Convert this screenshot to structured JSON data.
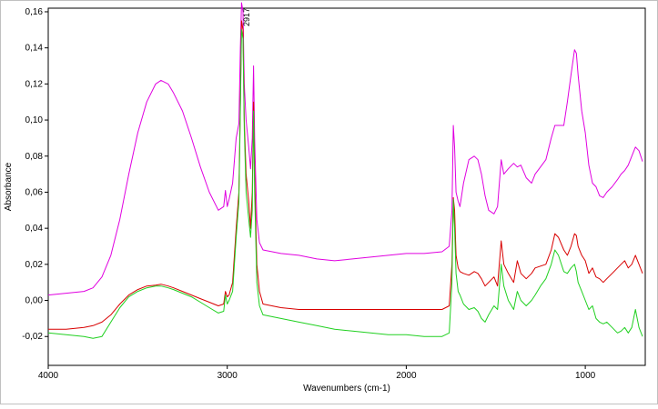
{
  "chart_data": {
    "type": "line",
    "xlabel": "Wavenumbers (cm-1)",
    "ylabel": "Absorbance",
    "xlim": [
      4000,
      665
    ],
    "ylim": [
      -0.036,
      0.162
    ],
    "x_reversed": true,
    "grid": false,
    "legend": "none",
    "xticks": [
      4000,
      3000,
      2000,
      1000
    ],
    "xtick_labels": [
      "4000",
      "3000",
      "2000",
      "1000"
    ],
    "yticks": [
      -0.02,
      0.0,
      0.02,
      0.04,
      0.06,
      0.08,
      0.1,
      0.12,
      0.14,
      0.16
    ],
    "ytick_labels": [
      "-0,02",
      "0,00",
      "0,02",
      "0,04",
      "0,06",
      "0,08",
      "0,10",
      "0,12",
      "0,14",
      "0,16"
    ],
    "annotations": [
      {
        "text": "2917",
        "x": 2917,
        "y": 0.158
      }
    ],
    "series": [
      {
        "color": "#e000e0",
        "points": [
          [
            4000,
            0.003
          ],
          [
            3900,
            0.004
          ],
          [
            3800,
            0.005
          ],
          [
            3750,
            0.007
          ],
          [
            3700,
            0.013
          ],
          [
            3650,
            0.025
          ],
          [
            3600,
            0.045
          ],
          [
            3550,
            0.07
          ],
          [
            3500,
            0.093
          ],
          [
            3450,
            0.11
          ],
          [
            3400,
            0.12
          ],
          [
            3370,
            0.122
          ],
          [
            3330,
            0.12
          ],
          [
            3300,
            0.115
          ],
          [
            3250,
            0.105
          ],
          [
            3200,
            0.09
          ],
          [
            3150,
            0.074
          ],
          [
            3100,
            0.06
          ],
          [
            3050,
            0.05
          ],
          [
            3020,
            0.052
          ],
          [
            3010,
            0.061
          ],
          [
            3000,
            0.052
          ],
          [
            2990,
            0.056
          ],
          [
            2970,
            0.065
          ],
          [
            2950,
            0.09
          ],
          [
            2935,
            0.098
          ],
          [
            2927,
            0.14
          ],
          [
            2920,
            0.165
          ],
          [
            2912,
            0.16
          ],
          [
            2905,
            0.12
          ],
          [
            2895,
            0.1
          ],
          [
            2880,
            0.085
          ],
          [
            2870,
            0.073
          ],
          [
            2860,
            0.09
          ],
          [
            2853,
            0.13
          ],
          [
            2847,
            0.09
          ],
          [
            2835,
            0.045
          ],
          [
            2820,
            0.032
          ],
          [
            2800,
            0.028
          ],
          [
            2700,
            0.026
          ],
          [
            2600,
            0.025
          ],
          [
            2500,
            0.023
          ],
          [
            2400,
            0.022
          ],
          [
            2300,
            0.023
          ],
          [
            2200,
            0.024
          ],
          [
            2100,
            0.025
          ],
          [
            2000,
            0.026
          ],
          [
            1900,
            0.026
          ],
          [
            1800,
            0.027
          ],
          [
            1760,
            0.03
          ],
          [
            1745,
            0.05
          ],
          [
            1737,
            0.097
          ],
          [
            1730,
            0.085
          ],
          [
            1722,
            0.06
          ],
          [
            1710,
            0.055
          ],
          [
            1700,
            0.052
          ],
          [
            1680,
            0.065
          ],
          [
            1650,
            0.078
          ],
          [
            1620,
            0.08
          ],
          [
            1600,
            0.078
          ],
          [
            1580,
            0.07
          ],
          [
            1560,
            0.058
          ],
          [
            1540,
            0.05
          ],
          [
            1510,
            0.048
          ],
          [
            1490,
            0.052
          ],
          [
            1470,
            0.078
          ],
          [
            1455,
            0.07
          ],
          [
            1430,
            0.073
          ],
          [
            1400,
            0.076
          ],
          [
            1380,
            0.074
          ],
          [
            1360,
            0.075
          ],
          [
            1330,
            0.068
          ],
          [
            1300,
            0.065
          ],
          [
            1280,
            0.07
          ],
          [
            1250,
            0.074
          ],
          [
            1220,
            0.078
          ],
          [
            1190,
            0.09
          ],
          [
            1170,
            0.097
          ],
          [
            1150,
            0.097
          ],
          [
            1120,
            0.097
          ],
          [
            1100,
            0.11
          ],
          [
            1080,
            0.125
          ],
          [
            1060,
            0.139
          ],
          [
            1050,
            0.137
          ],
          [
            1040,
            0.125
          ],
          [
            1020,
            0.105
          ],
          [
            1000,
            0.093
          ],
          [
            980,
            0.075
          ],
          [
            960,
            0.065
          ],
          [
            940,
            0.063
          ],
          [
            920,
            0.058
          ],
          [
            900,
            0.057
          ],
          [
            880,
            0.06
          ],
          [
            850,
            0.063
          ],
          [
            820,
            0.067
          ],
          [
            800,
            0.07
          ],
          [
            780,
            0.072
          ],
          [
            760,
            0.075
          ],
          [
            740,
            0.08
          ],
          [
            720,
            0.085
          ],
          [
            700,
            0.083
          ],
          [
            680,
            0.077
          ]
        ]
      },
      {
        "color": "#d80000",
        "points": [
          [
            4000,
            -0.016
          ],
          [
            3900,
            -0.016
          ],
          [
            3800,
            -0.015
          ],
          [
            3750,
            -0.014
          ],
          [
            3700,
            -0.012
          ],
          [
            3650,
            -0.008
          ],
          [
            3600,
            -0.002
          ],
          [
            3550,
            0.003
          ],
          [
            3500,
            0.006
          ],
          [
            3450,
            0.008
          ],
          [
            3400,
            0.0085
          ],
          [
            3370,
            0.009
          ],
          [
            3330,
            0.008
          ],
          [
            3300,
            0.007
          ],
          [
            3250,
            0.005
          ],
          [
            3200,
            0.003
          ],
          [
            3150,
            0.001
          ],
          [
            3100,
            -0.001
          ],
          [
            3050,
            -0.003
          ],
          [
            3020,
            -0.002
          ],
          [
            3010,
            0.005
          ],
          [
            3000,
            0.002
          ],
          [
            2990,
            0.003
          ],
          [
            2970,
            0.01
          ],
          [
            2950,
            0.04
          ],
          [
            2935,
            0.06
          ],
          [
            2927,
            0.11
          ],
          [
            2920,
            0.155
          ],
          [
            2912,
            0.15
          ],
          [
            2905,
            0.1
          ],
          [
            2895,
            0.07
          ],
          [
            2880,
            0.055
          ],
          [
            2870,
            0.04
          ],
          [
            2860,
            0.06
          ],
          [
            2853,
            0.11
          ],
          [
            2847,
            0.07
          ],
          [
            2835,
            0.02
          ],
          [
            2820,
            0.005
          ],
          [
            2800,
            -0.002
          ],
          [
            2700,
            -0.004
          ],
          [
            2600,
            -0.005
          ],
          [
            2500,
            -0.005
          ],
          [
            2400,
            -0.005
          ],
          [
            2300,
            -0.005
          ],
          [
            2200,
            -0.005
          ],
          [
            2100,
            -0.005
          ],
          [
            2000,
            -0.005
          ],
          [
            1900,
            -0.005
          ],
          [
            1800,
            -0.005
          ],
          [
            1760,
            -0.003
          ],
          [
            1745,
            0.02
          ],
          [
            1737,
            0.057
          ],
          [
            1730,
            0.05
          ],
          [
            1722,
            0.025
          ],
          [
            1710,
            0.018
          ],
          [
            1700,
            0.016
          ],
          [
            1680,
            0.015
          ],
          [
            1650,
            0.014
          ],
          [
            1620,
            0.016
          ],
          [
            1600,
            0.015
          ],
          [
            1580,
            0.012
          ],
          [
            1560,
            0.008
          ],
          [
            1540,
            0.01
          ],
          [
            1510,
            0.013
          ],
          [
            1490,
            0.008
          ],
          [
            1470,
            0.033
          ],
          [
            1455,
            0.02
          ],
          [
            1430,
            0.015
          ],
          [
            1400,
            0.01
          ],
          [
            1380,
            0.022
          ],
          [
            1360,
            0.015
          ],
          [
            1330,
            0.012
          ],
          [
            1300,
            0.015
          ],
          [
            1280,
            0.018
          ],
          [
            1250,
            0.019
          ],
          [
            1220,
            0.02
          ],
          [
            1190,
            0.028
          ],
          [
            1170,
            0.037
          ],
          [
            1150,
            0.035
          ],
          [
            1120,
            0.028
          ],
          [
            1100,
            0.025
          ],
          [
            1080,
            0.03
          ],
          [
            1060,
            0.037
          ],
          [
            1050,
            0.036
          ],
          [
            1040,
            0.03
          ],
          [
            1020,
            0.025
          ],
          [
            1000,
            0.022
          ],
          [
            980,
            0.015
          ],
          [
            960,
            0.018
          ],
          [
            940,
            0.013
          ],
          [
            920,
            0.012
          ],
          [
            900,
            0.01
          ],
          [
            880,
            0.012
          ],
          [
            850,
            0.015
          ],
          [
            820,
            0.018
          ],
          [
            800,
            0.02
          ],
          [
            780,
            0.022
          ],
          [
            760,
            0.018
          ],
          [
            740,
            0.02
          ],
          [
            720,
            0.025
          ],
          [
            700,
            0.02
          ],
          [
            680,
            0.015
          ]
        ]
      },
      {
        "color": "#20d020",
        "points": [
          [
            4000,
            -0.018
          ],
          [
            3900,
            -0.019
          ],
          [
            3800,
            -0.02
          ],
          [
            3750,
            -0.021
          ],
          [
            3700,
            -0.02
          ],
          [
            3650,
            -0.012
          ],
          [
            3600,
            -0.004
          ],
          [
            3550,
            0.002
          ],
          [
            3500,
            0.005
          ],
          [
            3450,
            0.007
          ],
          [
            3400,
            0.008
          ],
          [
            3370,
            0.008
          ],
          [
            3330,
            0.007
          ],
          [
            3300,
            0.006
          ],
          [
            3250,
            0.004
          ],
          [
            3200,
            0.002
          ],
          [
            3150,
            -0.001
          ],
          [
            3100,
            -0.004
          ],
          [
            3050,
            -0.007
          ],
          [
            3020,
            -0.006
          ],
          [
            3010,
            0.003
          ],
          [
            3000,
            -0.002
          ],
          [
            2990,
            0.0
          ],
          [
            2970,
            0.005
          ],
          [
            2950,
            0.035
          ],
          [
            2935,
            0.055
          ],
          [
            2927,
            0.105
          ],
          [
            2920,
            0.15
          ],
          [
            2912,
            0.145
          ],
          [
            2905,
            0.095
          ],
          [
            2895,
            0.06
          ],
          [
            2880,
            0.045
          ],
          [
            2870,
            0.035
          ],
          [
            2860,
            0.05
          ],
          [
            2853,
            0.105
          ],
          [
            2847,
            0.06
          ],
          [
            2835,
            0.01
          ],
          [
            2820,
            -0.003
          ],
          [
            2800,
            -0.008
          ],
          [
            2700,
            -0.01
          ],
          [
            2600,
            -0.012
          ],
          [
            2500,
            -0.014
          ],
          [
            2400,
            -0.016
          ],
          [
            2300,
            -0.017
          ],
          [
            2200,
            -0.018
          ],
          [
            2100,
            -0.019
          ],
          [
            2000,
            -0.019
          ],
          [
            1900,
            -0.02
          ],
          [
            1800,
            -0.02
          ],
          [
            1760,
            -0.018
          ],
          [
            1745,
            0.01
          ],
          [
            1737,
            0.056
          ],
          [
            1730,
            0.04
          ],
          [
            1722,
            0.015
          ],
          [
            1710,
            0.005
          ],
          [
            1700,
            0.003
          ],
          [
            1680,
            -0.002
          ],
          [
            1650,
            -0.005
          ],
          [
            1620,
            -0.004
          ],
          [
            1600,
            -0.006
          ],
          [
            1580,
            -0.01
          ],
          [
            1560,
            -0.012
          ],
          [
            1540,
            -0.008
          ],
          [
            1510,
            -0.003
          ],
          [
            1490,
            -0.005
          ],
          [
            1470,
            0.02
          ],
          [
            1455,
            0.008
          ],
          [
            1430,
            0.0
          ],
          [
            1400,
            -0.005
          ],
          [
            1380,
            0.005
          ],
          [
            1360,
            0.0
          ],
          [
            1330,
            -0.003
          ],
          [
            1300,
            0.0
          ],
          [
            1280,
            0.003
          ],
          [
            1250,
            0.008
          ],
          [
            1220,
            0.012
          ],
          [
            1190,
            0.02
          ],
          [
            1170,
            0.028
          ],
          [
            1150,
            0.025
          ],
          [
            1120,
            0.016
          ],
          [
            1100,
            0.015
          ],
          [
            1080,
            0.018
          ],
          [
            1060,
            0.02
          ],
          [
            1050,
            0.016
          ],
          [
            1040,
            0.01
          ],
          [
            1020,
            0.005
          ],
          [
            1000,
            0.0
          ],
          [
            980,
            -0.005
          ],
          [
            960,
            -0.003
          ],
          [
            940,
            -0.01
          ],
          [
            920,
            -0.012
          ],
          [
            900,
            -0.013
          ],
          [
            880,
            -0.012
          ],
          [
            850,
            -0.015
          ],
          [
            820,
            -0.018
          ],
          [
            800,
            -0.017
          ],
          [
            780,
            -0.015
          ],
          [
            760,
            -0.018
          ],
          [
            740,
            -0.015
          ],
          [
            720,
            -0.005
          ],
          [
            700,
            -0.015
          ],
          [
            680,
            -0.02
          ]
        ]
      }
    ]
  }
}
